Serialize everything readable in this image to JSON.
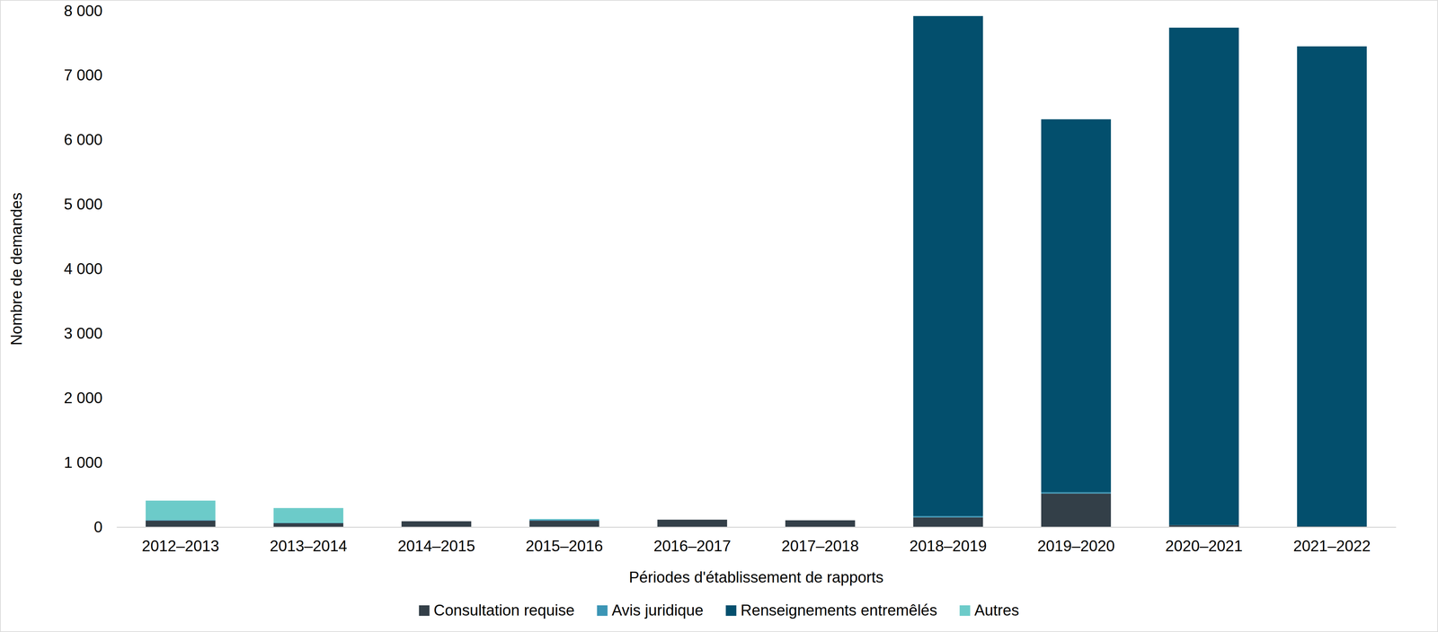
{
  "chart_data": {
    "type": "bar",
    "stacked": true,
    "grid": false,
    "legend": "bottom",
    "x_label": "Périodes d'établissement de rapports",
    "y_label": "Nombre de demandes",
    "categories": [
      "2012–2013",
      "2013–2014",
      "2014–2015",
      "2015–2016",
      "2016–2017",
      "2017–2018",
      "2018–2019",
      "2019–2020",
      "2020–2021",
      "2021–2022"
    ],
    "series": [
      {
        "name": "Consultation requise",
        "color": "#333f48",
        "values": [
          100,
          60,
          90,
          100,
          115,
          105,
          150,
          520,
          30,
          10
        ]
      },
      {
        "name": "Avis juridique",
        "color": "#3b95b5",
        "values": [
          10,
          5,
          0,
          15,
          0,
          0,
          20,
          20,
          0,
          0
        ]
      },
      {
        "name": "Renseignements entremêlés",
        "color": "#034f6d",
        "values": [
          0,
          0,
          0,
          0,
          0,
          0,
          7750,
          5780,
          7710,
          7440
        ]
      },
      {
        "name": "Autres",
        "color": "#6ccbc9",
        "values": [
          300,
          230,
          0,
          10,
          0,
          0,
          0,
          0,
          0,
          0
        ]
      }
    ],
    "ylim": [
      0,
      8000
    ],
    "yticks": [
      0,
      {
        "value": 1000,
        "label": "1 000"
      },
      {
        "value": 2000,
        "label": "2 000"
      },
      {
        "value": 3000,
        "label": "3 000"
      },
      {
        "value": 4000,
        "label": "4 000"
      },
      {
        "value": 5000,
        "label": "5 000"
      },
      {
        "value": 6000,
        "label": "6 000"
      },
      {
        "value": 7000,
        "label": "7 000"
      },
      {
        "value": 8000,
        "label": "8 000"
      }
    ]
  }
}
